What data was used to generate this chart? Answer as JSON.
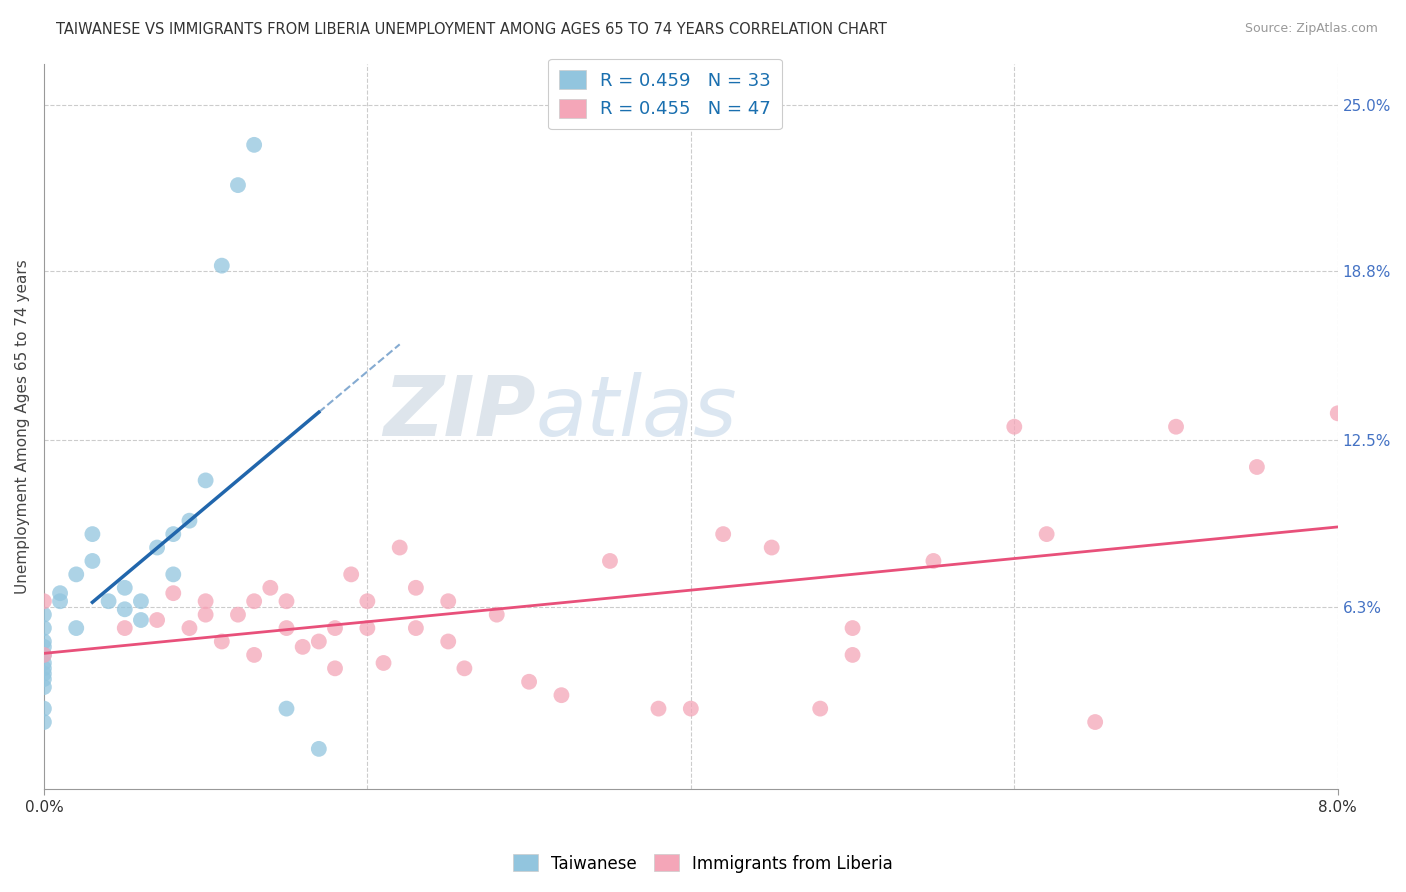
{
  "title": "TAIWANESE VS IMMIGRANTS FROM LIBERIA UNEMPLOYMENT AMONG AGES 65 TO 74 YEARS CORRELATION CHART",
  "source": "Source: ZipAtlas.com",
  "ylabel": "Unemployment Among Ages 65 to 74 years",
  "xlim": [
    0.0,
    0.08
  ],
  "ylim": [
    -0.005,
    0.265
  ],
  "taiwanese_color": "#92c5de",
  "liberia_color": "#f4a6b8",
  "trend_taiwanese_color": "#2166ac",
  "trend_liberia_color": "#e8507a",
  "taiwanese_R": 0.459,
  "taiwanese_N": 33,
  "liberia_R": 0.455,
  "liberia_N": 47,
  "watermark_zip": "ZIP",
  "watermark_atlas": "atlas",
  "background_color": "#ffffff",
  "taiwanese_x": [
    0.0,
    0.0,
    0.0,
    0.0,
    0.0,
    0.0,
    0.0,
    0.0,
    0.0,
    0.0,
    0.0,
    0.0,
    0.001,
    0.001,
    0.002,
    0.002,
    0.003,
    0.003,
    0.004,
    0.005,
    0.005,
    0.006,
    0.006,
    0.007,
    0.008,
    0.008,
    0.009,
    0.01,
    0.011,
    0.012,
    0.013,
    0.015,
    0.017
  ],
  "taiwanese_y": [
    0.06,
    0.055,
    0.05,
    0.048,
    0.045,
    0.042,
    0.04,
    0.038,
    0.036,
    0.033,
    0.025,
    0.02,
    0.068,
    0.065,
    0.075,
    0.055,
    0.09,
    0.08,
    0.065,
    0.07,
    0.062,
    0.065,
    0.058,
    0.085,
    0.09,
    0.075,
    0.095,
    0.11,
    0.19,
    0.22,
    0.235,
    0.025,
    0.01
  ],
  "liberia_x": [
    0.0,
    0.0,
    0.005,
    0.007,
    0.008,
    0.009,
    0.01,
    0.01,
    0.011,
    0.012,
    0.013,
    0.013,
    0.014,
    0.015,
    0.015,
    0.016,
    0.017,
    0.018,
    0.018,
    0.019,
    0.02,
    0.02,
    0.021,
    0.022,
    0.023,
    0.023,
    0.025,
    0.025,
    0.026,
    0.028,
    0.03,
    0.032,
    0.035,
    0.038,
    0.04,
    0.042,
    0.045,
    0.048,
    0.05,
    0.05,
    0.055,
    0.06,
    0.062,
    0.065,
    0.07,
    0.075,
    0.08
  ],
  "liberia_y": [
    0.065,
    0.045,
    0.055,
    0.058,
    0.068,
    0.055,
    0.065,
    0.06,
    0.05,
    0.06,
    0.065,
    0.045,
    0.07,
    0.065,
    0.055,
    0.048,
    0.05,
    0.055,
    0.04,
    0.075,
    0.065,
    0.055,
    0.042,
    0.085,
    0.07,
    0.055,
    0.065,
    0.05,
    0.04,
    0.06,
    0.035,
    0.03,
    0.08,
    0.025,
    0.025,
    0.09,
    0.085,
    0.025,
    0.055,
    0.045,
    0.08,
    0.13,
    0.09,
    0.02,
    0.13,
    0.115,
    0.135
  ],
  "grid_color": "#cccccc",
  "legend_color": "#1a6faf"
}
